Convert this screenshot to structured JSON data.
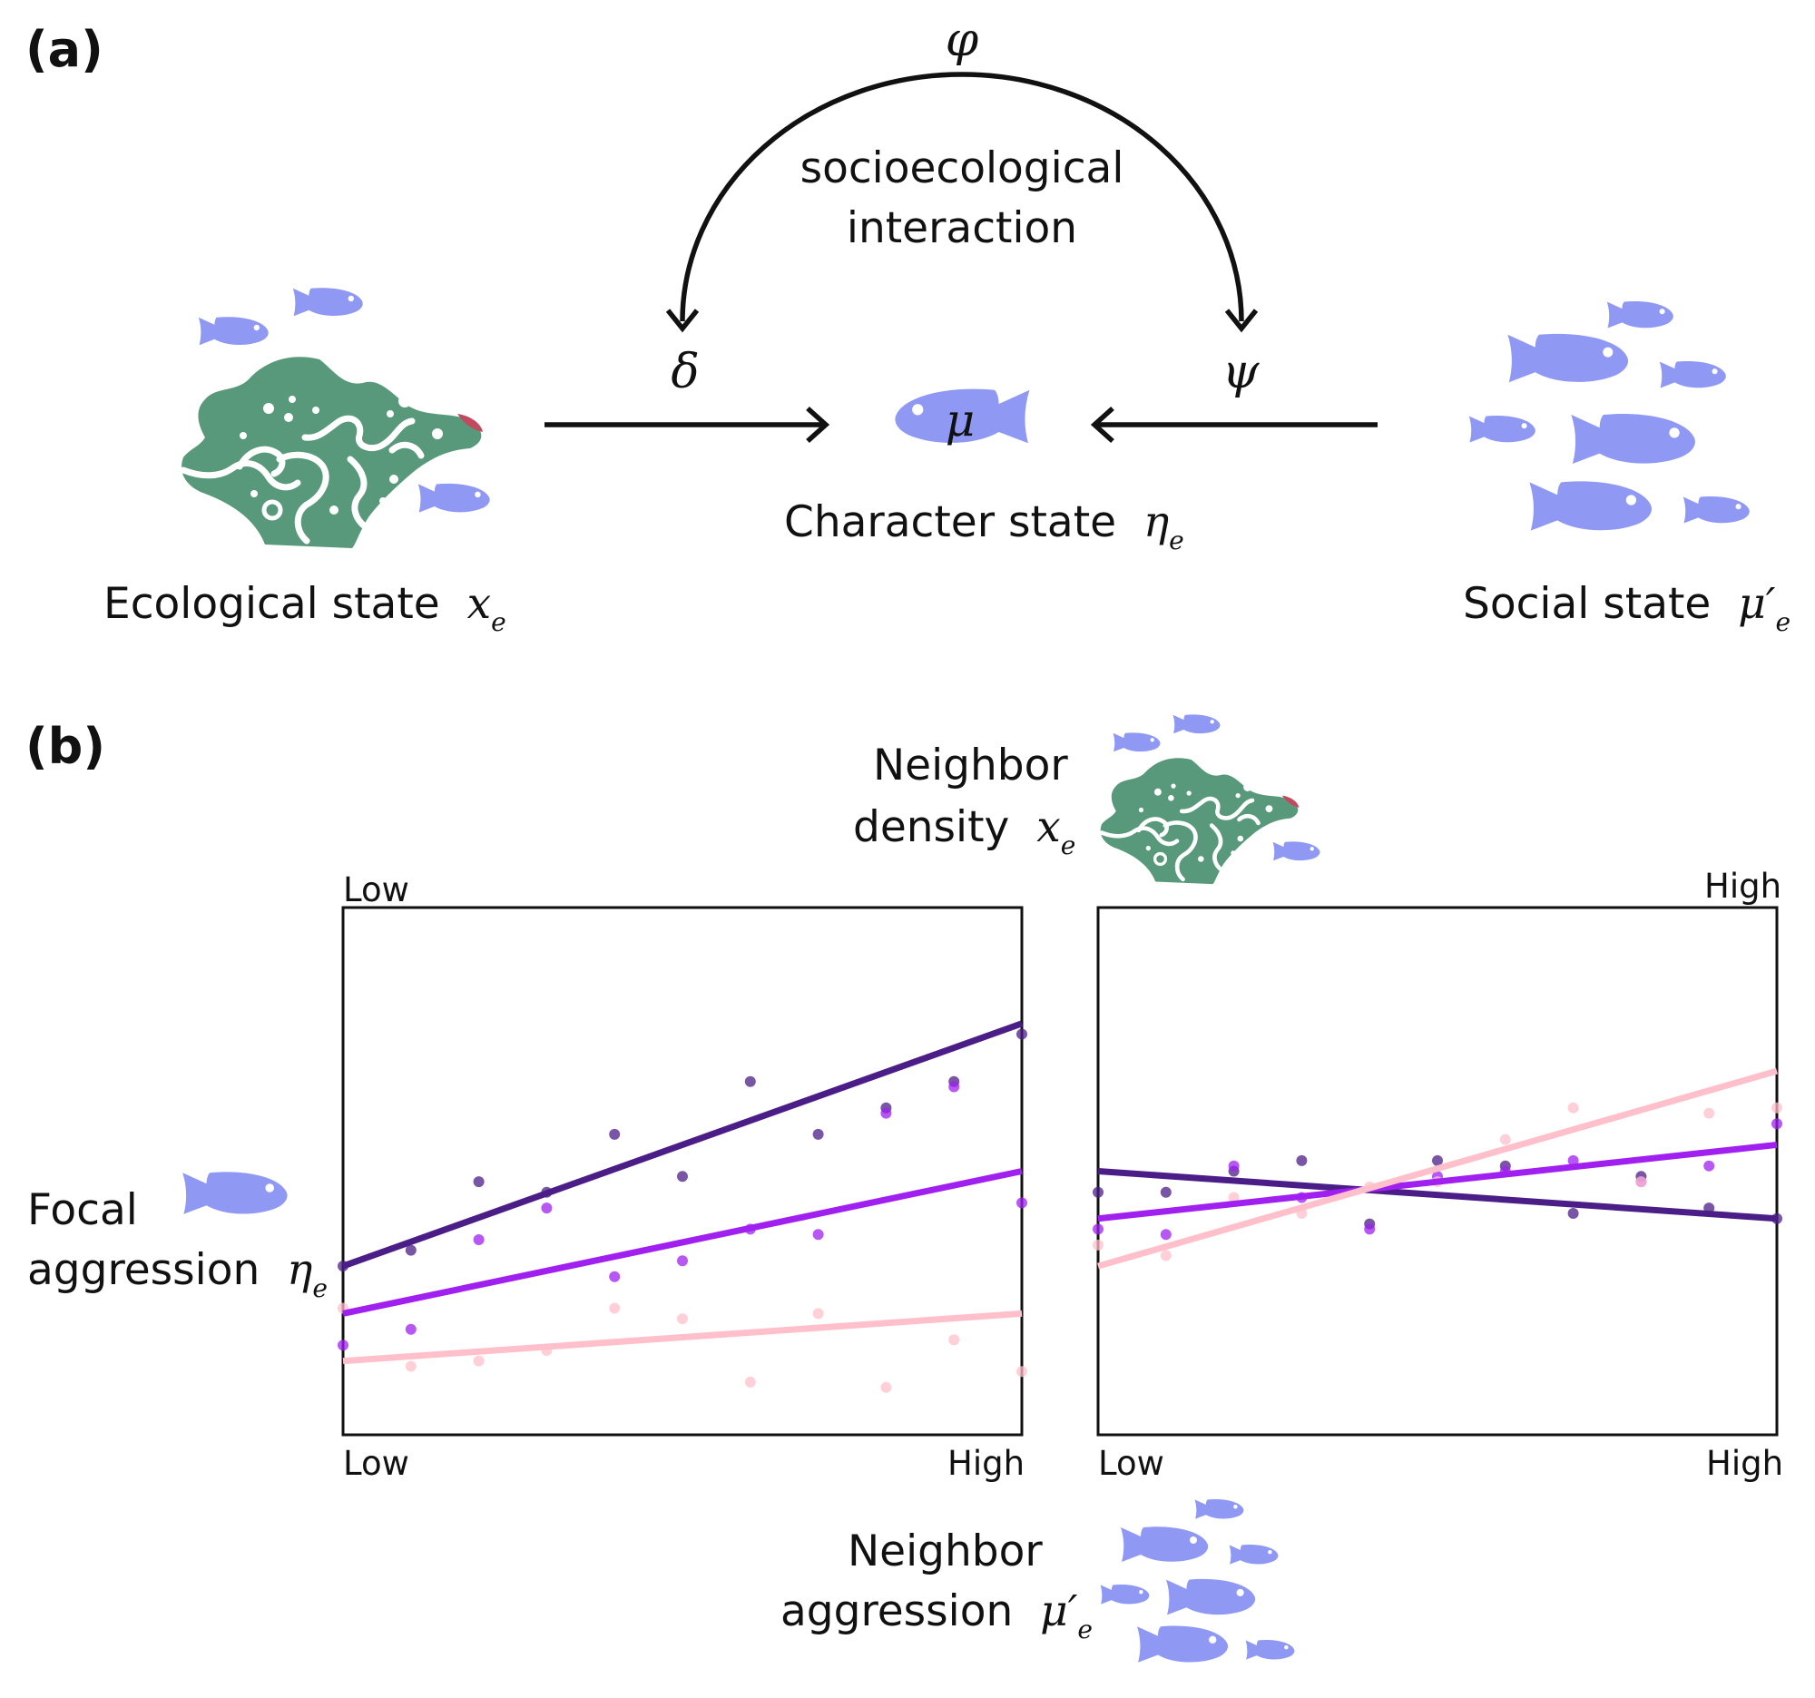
{
  "panel_a": {
    "label": "(a)",
    "phi": "φ",
    "interaction_line1": "socioecological",
    "interaction_line2": "interaction",
    "delta": "δ",
    "psi": "ψ",
    "mu": "μ",
    "character_label": "Character state",
    "character_symbol": "η",
    "character_sub": "e",
    "ecological_label": "Ecological state",
    "ecological_symbol": "x",
    "ecological_sub": "e",
    "social_label": "Social state",
    "social_symbol": "μ′",
    "social_sub": "e"
  },
  "panel_b": {
    "label": "(b)",
    "density_line1": "Neighbor",
    "density_line2": "density",
    "density_symbol": "x",
    "density_sub": "e",
    "focal_line1": "Focal",
    "focal_line2": "aggression",
    "focal_symbol": "η",
    "focal_sub": "e",
    "neighbor_line1": "Neighbor",
    "neighbor_line2": "aggression",
    "neighbor_symbol": "μ′",
    "neighbor_sub": "e",
    "left_plot_density_level": "Low",
    "right_plot_density_level": "High",
    "left_x_low": "Low",
    "left_x_high": "High",
    "right_x_low": "Low",
    "right_x_high": "High"
  },
  "colors": {
    "fish": "#8F98F2",
    "coral": "#59997B",
    "series_dark": "#4B1E87",
    "series_mid": "#A020F0",
    "series_light": "#FFC0CB"
  },
  "chart_data": [
    {
      "type": "scatter",
      "xlim": [
        0,
        1
      ],
      "ylim": [
        0,
        1
      ],
      "series": [
        {
          "color": "#4B1E87",
          "fit": [
            0.32,
            0.78
          ],
          "points": [
            [
              0,
              0.32
            ],
            [
              0.1,
              0.35
            ],
            [
              0.2,
              0.48
            ],
            [
              0.3,
              0.46
            ],
            [
              0.4,
              0.57
            ],
            [
              0.5,
              0.49
            ],
            [
              0.6,
              0.67
            ],
            [
              0.7,
              0.57
            ],
            [
              0.8,
              0.62
            ],
            [
              0.9,
              0.67
            ],
            [
              1.0,
              0.76
            ]
          ]
        },
        {
          "color": "#A020F0",
          "fit": [
            0.23,
            0.5
          ],
          "points": [
            [
              0,
              0.17
            ],
            [
              0.1,
              0.2
            ],
            [
              0.2,
              0.37
            ],
            [
              0.3,
              0.43
            ],
            [
              0.4,
              0.3
            ],
            [
              0.5,
              0.33
            ],
            [
              0.6,
              0.39
            ],
            [
              0.7,
              0.38
            ],
            [
              0.8,
              0.61
            ],
            [
              0.9,
              0.66
            ],
            [
              1.0,
              0.44
            ]
          ]
        },
        {
          "color": "#FFC0CB",
          "fit": [
            0.14,
            0.23
          ],
          "points": [
            [
              0,
              0.24
            ],
            [
              0.1,
              0.13
            ],
            [
              0.2,
              0.14
            ],
            [
              0.3,
              0.16
            ],
            [
              0.4,
              0.24
            ],
            [
              0.5,
              0.22
            ],
            [
              0.6,
              0.1
            ],
            [
              0.7,
              0.23
            ],
            [
              0.8,
              0.09
            ],
            [
              0.9,
              0.18
            ],
            [
              1.0,
              0.12
            ]
          ]
        }
      ]
    },
    {
      "type": "scatter",
      "xlim": [
        0,
        1
      ],
      "ylim": [
        0,
        1
      ],
      "series": [
        {
          "color": "#4B1E87",
          "fit": [
            0.5,
            0.41
          ],
          "points": [
            [
              0,
              0.46
            ],
            [
              0.1,
              0.46
            ],
            [
              0.2,
              0.5
            ],
            [
              0.3,
              0.52
            ],
            [
              0.4,
              0.4
            ],
            [
              0.5,
              0.52
            ],
            [
              0.6,
              0.51
            ],
            [
              0.7,
              0.42
            ],
            [
              0.8,
              0.49
            ],
            [
              0.9,
              0.43
            ],
            [
              1.0,
              0.41
            ]
          ]
        },
        {
          "color": "#A020F0",
          "fit": [
            0.41,
            0.55
          ],
          "points": [
            [
              0,
              0.39
            ],
            [
              0.1,
              0.38
            ],
            [
              0.2,
              0.51
            ],
            [
              0.3,
              0.45
            ],
            [
              0.4,
              0.39
            ],
            [
              0.5,
              0.49
            ],
            [
              0.6,
              0.5
            ],
            [
              0.7,
              0.52
            ],
            [
              0.8,
              0.48
            ],
            [
              0.9,
              0.51
            ],
            [
              1.0,
              0.59
            ]
          ]
        },
        {
          "color": "#FFC0CB",
          "fit": [
            0.32,
            0.69
          ],
          "points": [
            [
              0,
              0.36
            ],
            [
              0.1,
              0.34
            ],
            [
              0.2,
              0.45
            ],
            [
              0.3,
              0.42
            ],
            [
              0.4,
              0.47
            ],
            [
              0.5,
              0.48
            ],
            [
              0.6,
              0.56
            ],
            [
              0.7,
              0.62
            ],
            [
              0.8,
              0.48
            ],
            [
              0.9,
              0.61
            ],
            [
              1.0,
              0.62
            ]
          ]
        }
      ]
    }
  ]
}
